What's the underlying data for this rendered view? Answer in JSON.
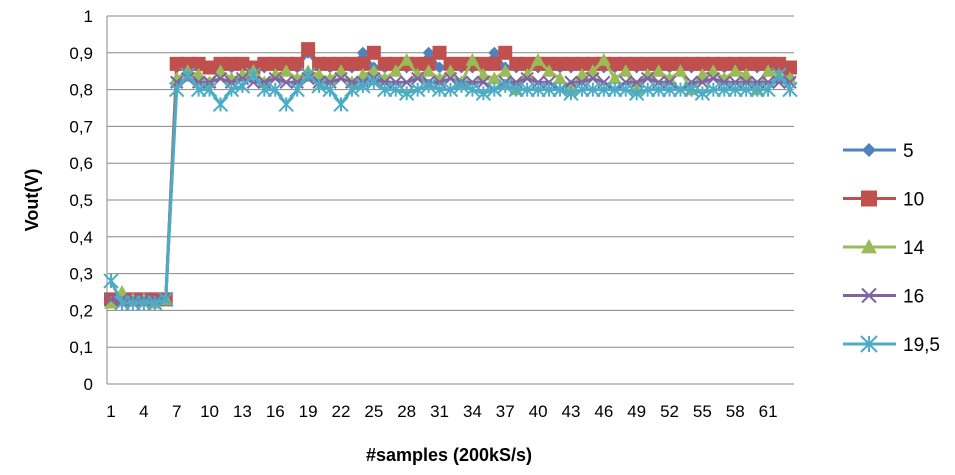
{
  "chart_data": {
    "type": "line",
    "title": "",
    "xlabel": "#samples (200kS/s)",
    "ylabel": "Vout(V)",
    "ylim": [
      0,
      1
    ],
    "y_ticks": [
      "0",
      "0,1",
      "0,2",
      "0,3",
      "0,4",
      "0,5",
      "0,6",
      "0,7",
      "0,8",
      "0,9",
      "1"
    ],
    "x_ticks": [
      "1",
      "4",
      "7",
      "10",
      "13",
      "16",
      "19",
      "22",
      "25",
      "28",
      "31",
      "34",
      "37",
      "40",
      "43",
      "46",
      "49",
      "52",
      "55",
      "58",
      "61"
    ],
    "x_tick_values": [
      1,
      4,
      7,
      10,
      13,
      16,
      19,
      22,
      25,
      28,
      31,
      34,
      37,
      40,
      43,
      46,
      49,
      52,
      55,
      58,
      61
    ],
    "xlim": [
      1,
      63
    ],
    "grid": "horizontal",
    "legend_position": "right",
    "series": [
      {
        "name": "5",
        "color": "#4F81BD",
        "marker": "diamond",
        "values": [
          0.23,
          0.23,
          0.23,
          0.23,
          0.23,
          0.23,
          0.86,
          0.86,
          0.86,
          0.86,
          0.86,
          0.86,
          0.86,
          0.86,
          0.86,
          0.86,
          0.86,
          0.86,
          0.9,
          0.86,
          0.86,
          0.86,
          0.86,
          0.9,
          0.86,
          0.86,
          0.86,
          0.86,
          0.86,
          0.9,
          0.86,
          0.86,
          0.86,
          0.86,
          0.86,
          0.9,
          0.86,
          0.86,
          0.86,
          0.86,
          0.86,
          0.86,
          0.86,
          0.86,
          0.86,
          0.86,
          0.86,
          0.86,
          0.86,
          0.86,
          0.86,
          0.86,
          0.86,
          0.86,
          0.86,
          0.86,
          0.86,
          0.86,
          0.86,
          0.86,
          0.86,
          0.86,
          0.83
        ]
      },
      {
        "name": "10",
        "color": "#C0504D",
        "marker": "square",
        "values": [
          0.23,
          0.23,
          0.23,
          0.23,
          0.23,
          0.23,
          0.87,
          0.87,
          0.87,
          0.86,
          0.87,
          0.87,
          0.87,
          0.86,
          0.87,
          0.87,
          0.87,
          0.87,
          0.91,
          0.87,
          0.87,
          0.87,
          0.87,
          0.87,
          0.9,
          0.87,
          0.87,
          0.87,
          0.87,
          0.87,
          0.9,
          0.87,
          0.87,
          0.87,
          0.87,
          0.87,
          0.9,
          0.87,
          0.87,
          0.87,
          0.87,
          0.87,
          0.87,
          0.87,
          0.87,
          0.87,
          0.87,
          0.87,
          0.87,
          0.87,
          0.87,
          0.87,
          0.87,
          0.87,
          0.87,
          0.87,
          0.87,
          0.87,
          0.87,
          0.87,
          0.87,
          0.87,
          0.86
        ]
      },
      {
        "name": "14",
        "color": "#9BBB59",
        "marker": "triangle",
        "values": [
          0.22,
          0.25,
          0.23,
          0.23,
          0.22,
          0.23,
          0.83,
          0.85,
          0.84,
          0.82,
          0.85,
          0.83,
          0.84,
          0.85,
          0.82,
          0.84,
          0.85,
          0.83,
          0.85,
          0.84,
          0.83,
          0.85,
          0.82,
          0.84,
          0.85,
          0.83,
          0.85,
          0.88,
          0.84,
          0.85,
          0.83,
          0.85,
          0.82,
          0.88,
          0.84,
          0.83,
          0.85,
          0.8,
          0.84,
          0.88,
          0.85,
          0.83,
          0.8,
          0.84,
          0.85,
          0.88,
          0.83,
          0.85,
          0.8,
          0.84,
          0.85,
          0.83,
          0.85,
          0.8,
          0.84,
          0.85,
          0.83,
          0.85,
          0.84,
          0.8,
          0.85,
          0.84,
          0.83
        ]
      },
      {
        "name": "16",
        "color": "#8064A2",
        "marker": "x",
        "values": [
          0.23,
          0.23,
          0.23,
          0.23,
          0.23,
          0.23,
          0.82,
          0.83,
          0.82,
          0.82,
          0.83,
          0.82,
          0.83,
          0.82,
          0.82,
          0.83,
          0.82,
          0.82,
          0.83,
          0.82,
          0.82,
          0.83,
          0.82,
          0.82,
          0.83,
          0.82,
          0.82,
          0.82,
          0.83,
          0.82,
          0.82,
          0.83,
          0.82,
          0.82,
          0.82,
          0.8,
          0.82,
          0.82,
          0.83,
          0.82,
          0.82,
          0.8,
          0.82,
          0.82,
          0.83,
          0.82,
          0.8,
          0.82,
          0.82,
          0.83,
          0.82,
          0.82,
          0.8,
          0.82,
          0.82,
          0.83,
          0.82,
          0.82,
          0.82,
          0.82,
          0.82,
          0.82,
          0.82
        ]
      },
      {
        "name": "19,5",
        "color": "#4BACC6",
        "marker": "asterisk",
        "values": [
          0.28,
          0.22,
          0.22,
          0.22,
          0.22,
          0.23,
          0.8,
          0.84,
          0.8,
          0.8,
          0.76,
          0.8,
          0.81,
          0.84,
          0.8,
          0.8,
          0.76,
          0.8,
          0.84,
          0.81,
          0.8,
          0.76,
          0.8,
          0.81,
          0.82,
          0.8,
          0.8,
          0.79,
          0.8,
          0.81,
          0.8,
          0.8,
          0.81,
          0.8,
          0.79,
          0.8,
          0.81,
          0.8,
          0.8,
          0.8,
          0.8,
          0.8,
          0.79,
          0.8,
          0.8,
          0.8,
          0.8,
          0.8,
          0.79,
          0.8,
          0.8,
          0.8,
          0.8,
          0.8,
          0.79,
          0.8,
          0.8,
          0.8,
          0.8,
          0.8,
          0.8,
          0.84,
          0.8
        ]
      }
    ]
  }
}
